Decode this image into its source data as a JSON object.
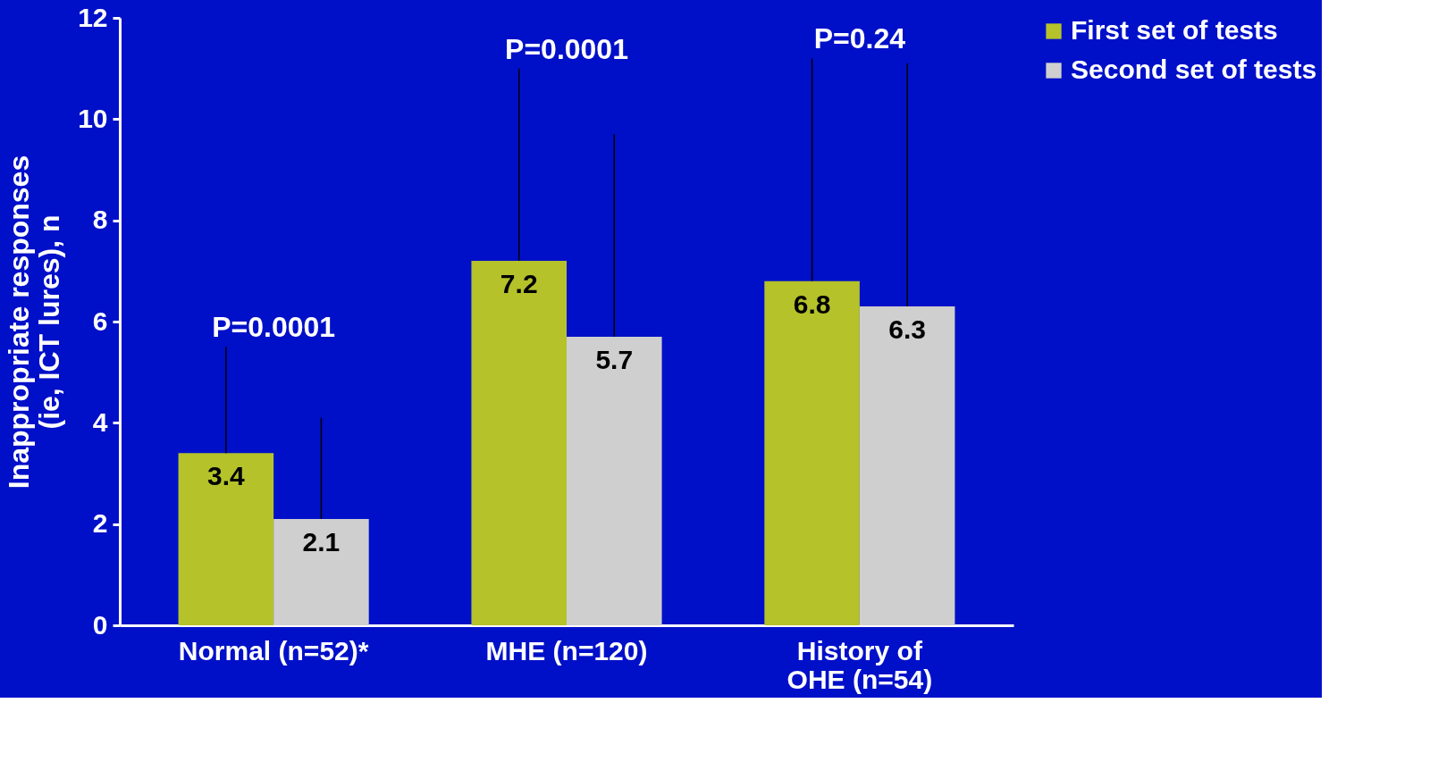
{
  "chart_data": {
    "type": "bar",
    "ylabel": "Inappropriate responses (ie, ICT lures), n",
    "categories": [
      "Normal (n=52)*",
      "MHE (n=120)",
      "History of OHE (n=54)"
    ],
    "series": [
      {
        "name": "First set of tests",
        "color": "#b5c22a",
        "values": [
          3.4,
          7.2,
          6.8
        ],
        "errors": [
          [
            3.4,
            5.5
          ],
          [
            7.2,
            11.0
          ],
          [
            6.8,
            11.2
          ]
        ]
      },
      {
        "name": "Second set of tests",
        "color": "#cfcfcf",
        "values": [
          2.1,
          5.7,
          6.3
        ],
        "errors": [
          [
            2.1,
            4.1
          ],
          [
            5.7,
            9.7
          ],
          [
            6.3,
            11.1
          ]
        ]
      }
    ],
    "ylim": [
      0,
      12
    ],
    "yticks": [
      0,
      2,
      4,
      6,
      8,
      10,
      12
    ],
    "grid": false,
    "legend": "top right",
    "data_labels": true,
    "annotations": [
      "P=0.0001",
      "P=0.0001",
      "P=0.24"
    ]
  }
}
